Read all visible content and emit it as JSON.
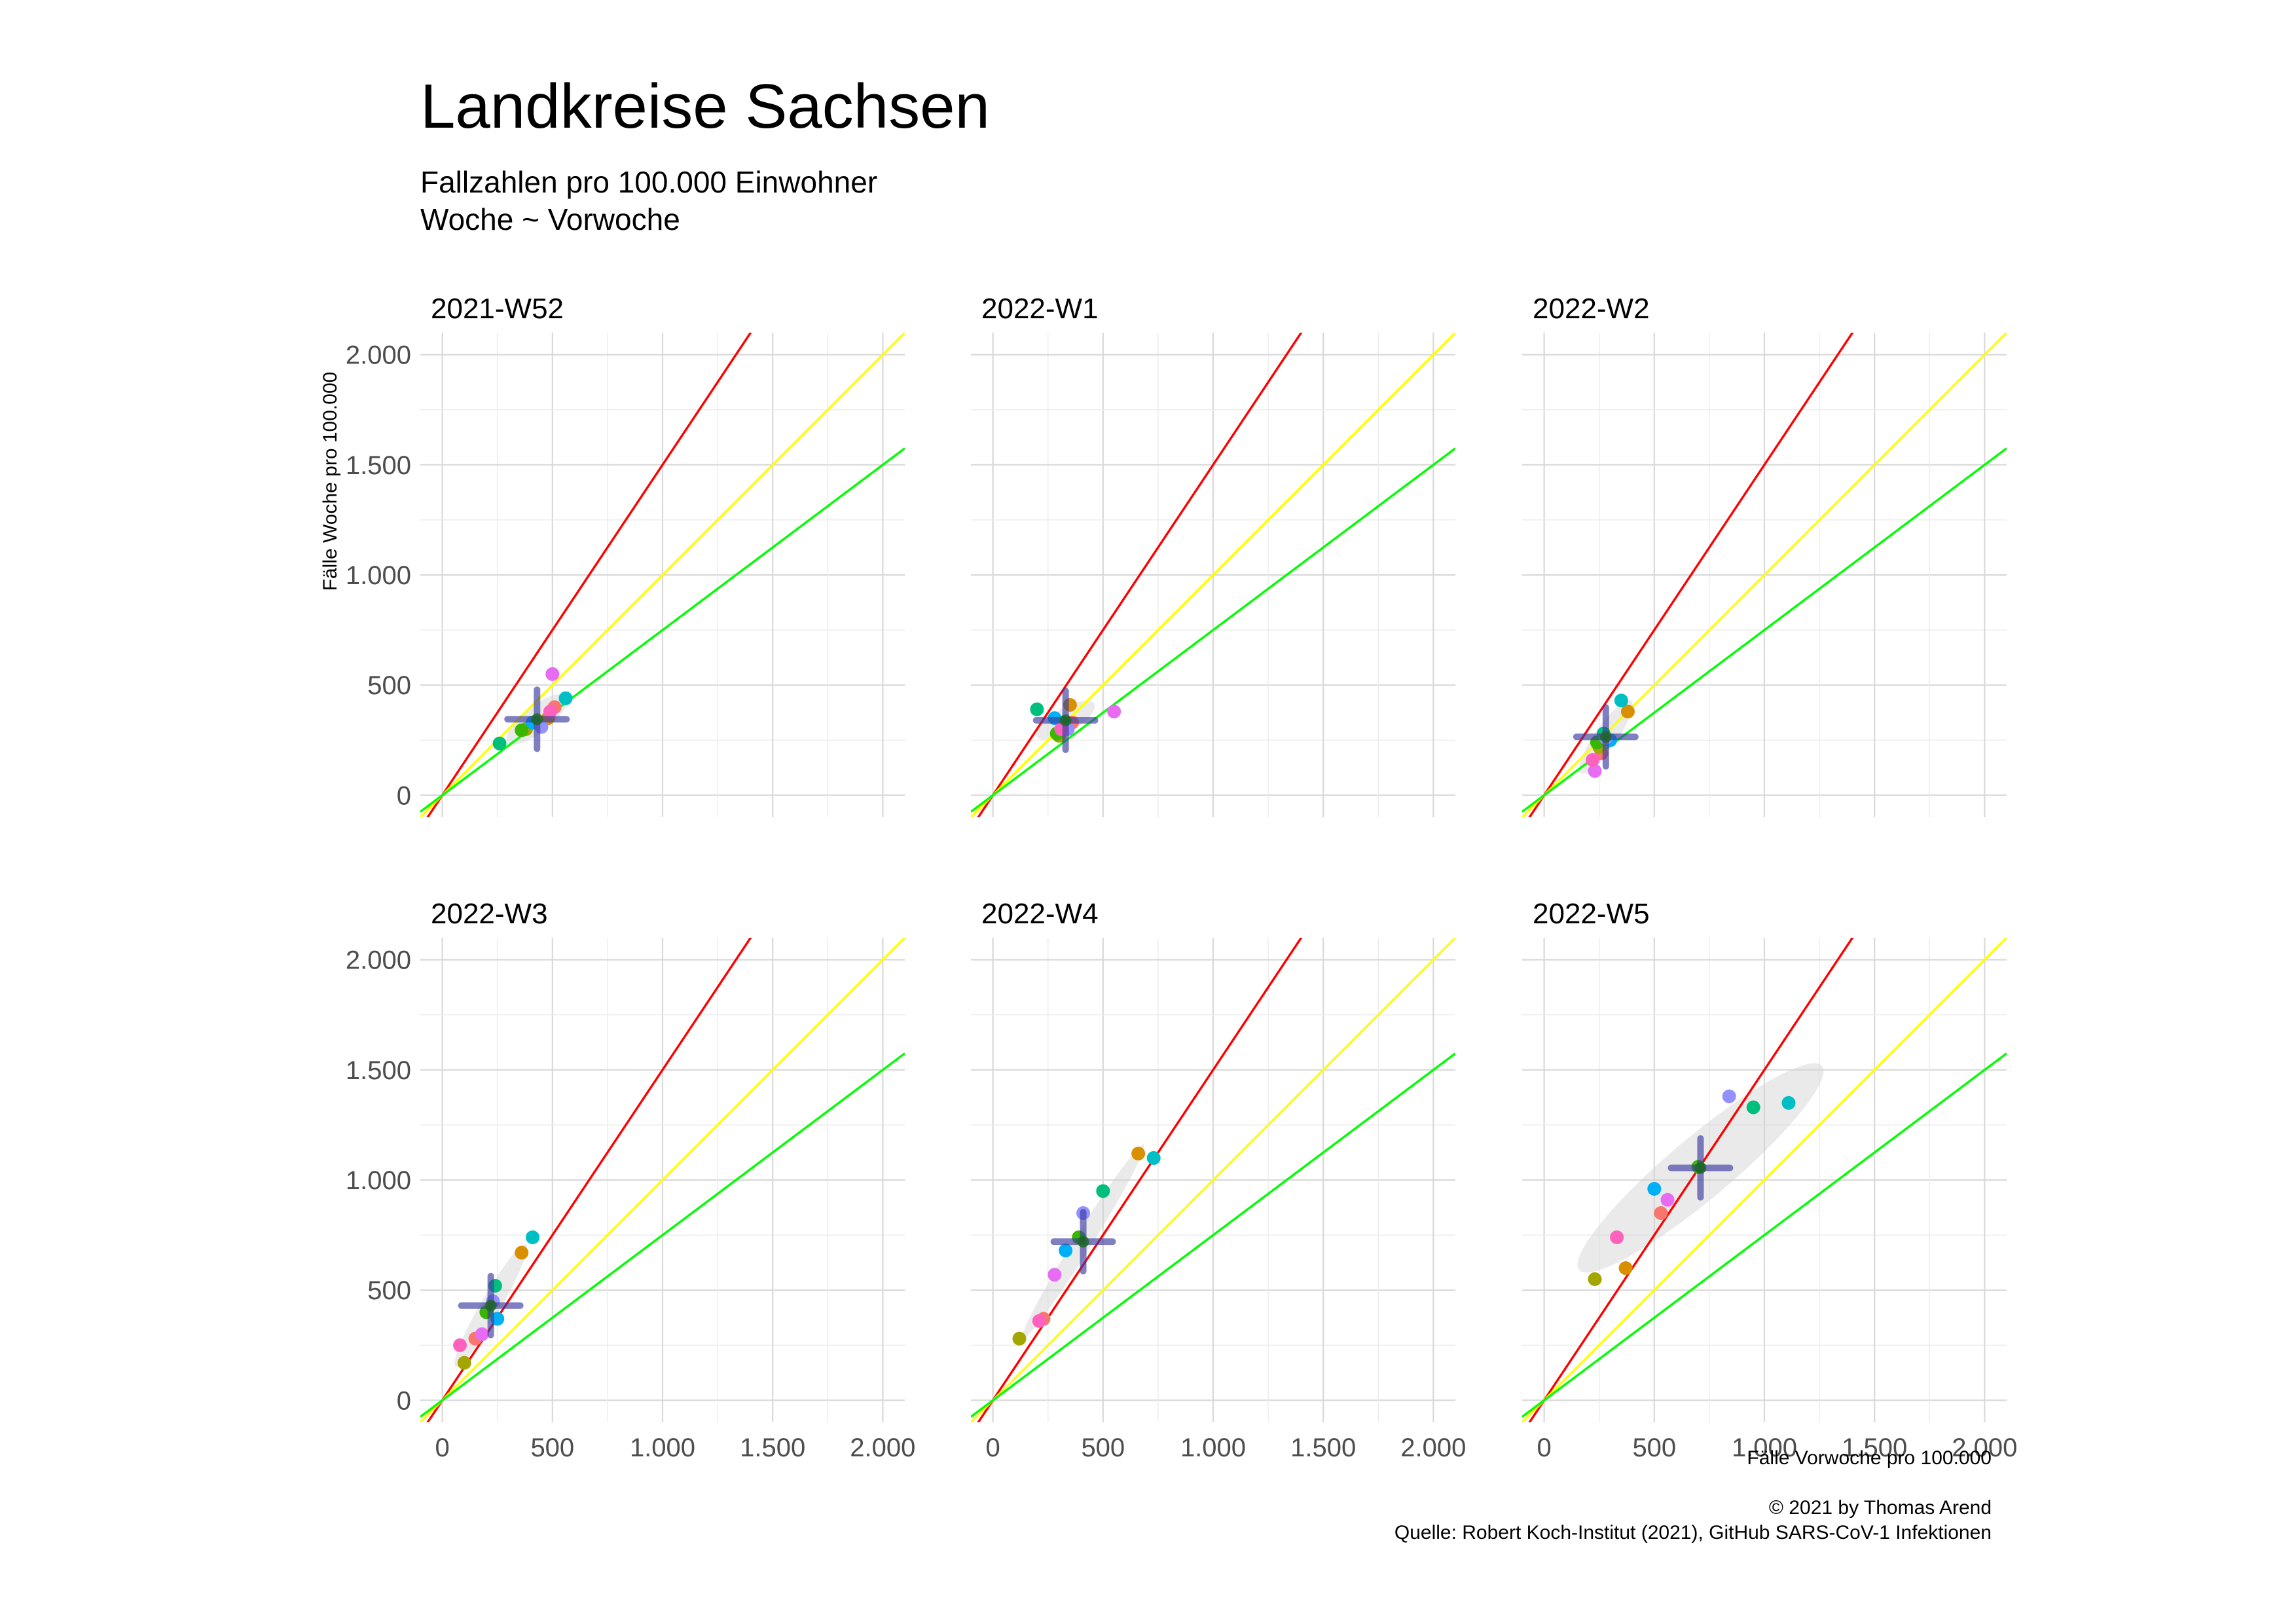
{
  "title": "Landkreise Sachsen",
  "subtitle_lines": [
    "Fallzahlen pro 100.000 Einwohner",
    "Woche ~ Vorwoche"
  ],
  "caption_lines": [
    "© 2021 by Thomas Arend",
    "Quelle: Robert Koch-Institut (2021), GitHub SARS-CoV-1 Infektionen"
  ],
  "chart_data": {
    "type": "scatter",
    "xlabel": "Fälle Vorwoche pro 100.000",
    "ylabel": "Fälle Woche pro 100.000",
    "xlim": [
      -100,
      2100
    ],
    "ylim": [
      -100,
      2100
    ],
    "tick_values": [
      0,
      500,
      1000,
      1500,
      2000
    ],
    "tick_labels": [
      "0",
      "500",
      "1.000",
      "1.500",
      "2.000"
    ],
    "grid": true,
    "reference_lines": [
      {
        "slope": 1.5,
        "color": "#ff0000"
      },
      {
        "slope": 1.0,
        "color": "#ffff00"
      },
      {
        "slope": 0.75,
        "color": "#00ff00"
      }
    ],
    "point_colors": [
      "#f8766d",
      "#d89000",
      "#a3a500",
      "#39b600",
      "#00bf7d",
      "#00bfc4",
      "#00b0f6",
      "#9590ff",
      "#e76bf3",
      "#ff62bc"
    ],
    "panels": [
      {
        "label": "2021-W52",
        "points": [
          {
            "x": 510,
            "y": 400,
            "c": 0
          },
          {
            "x": 480,
            "y": 350,
            "c": 1
          },
          {
            "x": 380,
            "y": 300,
            "c": 2
          },
          {
            "x": 360,
            "y": 295,
            "c": 3
          },
          {
            "x": 260,
            "y": 235,
            "c": 4
          },
          {
            "x": 560,
            "y": 440,
            "c": 5
          },
          {
            "x": 410,
            "y": 330,
            "c": 6
          },
          {
            "x": 450,
            "y": 310,
            "c": 7
          },
          {
            "x": 500,
            "y": 550,
            "c": 8
          },
          {
            "x": 490,
            "y": 380,
            "c": 9
          }
        ],
        "center": {
          "x": 430,
          "y": 345
        },
        "ellipse": {
          "rx": 170,
          "ry": 60,
          "angle": 38
        }
      },
      {
        "label": "2022-W1",
        "points": [
          {
            "x": 360,
            "y": 330,
            "c": 0
          },
          {
            "x": 350,
            "y": 410,
            "c": 1
          },
          {
            "x": 300,
            "y": 270,
            "c": 2
          },
          {
            "x": 290,
            "y": 280,
            "c": 3
          },
          {
            "x": 200,
            "y": 390,
            "c": 4
          },
          {
            "x": 320,
            "y": 330,
            "c": 5
          },
          {
            "x": 280,
            "y": 350,
            "c": 6
          },
          {
            "x": 340,
            "y": 300,
            "c": 7
          },
          {
            "x": 550,
            "y": 380,
            "c": 8
          },
          {
            "x": 310,
            "y": 300,
            "c": 9
          }
        ],
        "center": {
          "x": 330,
          "y": 340
        },
        "ellipse": {
          "rx": 150,
          "ry": 55,
          "angle": 30
        }
      },
      {
        "label": "2022-W2",
        "points": [
          {
            "x": 260,
            "y": 190,
            "c": 0
          },
          {
            "x": 380,
            "y": 380,
            "c": 1
          },
          {
            "x": 250,
            "y": 220,
            "c": 2
          },
          {
            "x": 240,
            "y": 240,
            "c": 3
          },
          {
            "x": 270,
            "y": 280,
            "c": 4
          },
          {
            "x": 350,
            "y": 430,
            "c": 5
          },
          {
            "x": 300,
            "y": 250,
            "c": 6
          },
          {
            "x": 280,
            "y": 260,
            "c": 7
          },
          {
            "x": 230,
            "y": 110,
            "c": 8
          },
          {
            "x": 220,
            "y": 160,
            "c": 9
          }
        ],
        "center": {
          "x": 280,
          "y": 265
        },
        "ellipse": {
          "rx": 200,
          "ry": 50,
          "angle": 55
        }
      },
      {
        "label": "2022-W3",
        "points": [
          {
            "x": 150,
            "y": 280,
            "c": 0
          },
          {
            "x": 360,
            "y": 670,
            "c": 1
          },
          {
            "x": 100,
            "y": 170,
            "c": 2
          },
          {
            "x": 200,
            "y": 400,
            "c": 3
          },
          {
            "x": 240,
            "y": 520,
            "c": 4
          },
          {
            "x": 410,
            "y": 740,
            "c": 5
          },
          {
            "x": 250,
            "y": 370,
            "c": 6
          },
          {
            "x": 230,
            "y": 450,
            "c": 7
          },
          {
            "x": 180,
            "y": 300,
            "c": 8
          },
          {
            "x": 80,
            "y": 250,
            "c": 9
          }
        ],
        "center": {
          "x": 220,
          "y": 430
        },
        "ellipse": {
          "rx": 320,
          "ry": 45,
          "angle": 60
        }
      },
      {
        "label": "2022-W4",
        "points": [
          {
            "x": 230,
            "y": 370,
            "c": 0
          },
          {
            "x": 660,
            "y": 1120,
            "c": 1
          },
          {
            "x": 120,
            "y": 280,
            "c": 2
          },
          {
            "x": 390,
            "y": 740,
            "c": 3
          },
          {
            "x": 500,
            "y": 950,
            "c": 4
          },
          {
            "x": 730,
            "y": 1100,
            "c": 5
          },
          {
            "x": 330,
            "y": 680,
            "c": 6
          },
          {
            "x": 410,
            "y": 850,
            "c": 7
          },
          {
            "x": 280,
            "y": 570,
            "c": 8
          },
          {
            "x": 210,
            "y": 360,
            "c": 9
          }
        ],
        "center": {
          "x": 410,
          "y": 720
        },
        "ellipse": {
          "rx": 520,
          "ry": 40,
          "angle": 58
        }
      },
      {
        "label": "2022-W5",
        "points": [
          {
            "x": 530,
            "y": 850,
            "c": 0
          },
          {
            "x": 370,
            "y": 600,
            "c": 1
          },
          {
            "x": 230,
            "y": 550,
            "c": 2
          },
          {
            "x": 700,
            "y": 1060,
            "c": 3
          },
          {
            "x": 950,
            "y": 1330,
            "c": 4
          },
          {
            "x": 1110,
            "y": 1350,
            "c": 5
          },
          {
            "x": 500,
            "y": 960,
            "c": 6
          },
          {
            "x": 840,
            "y": 1380,
            "c": 7
          },
          {
            "x": 560,
            "y": 910,
            "c": 8
          },
          {
            "x": 330,
            "y": 740,
            "c": 9
          }
        ],
        "center": {
          "x": 710,
          "y": 1055
        },
        "ellipse": {
          "rx": 720,
          "ry": 140,
          "angle": 40
        }
      }
    ]
  }
}
